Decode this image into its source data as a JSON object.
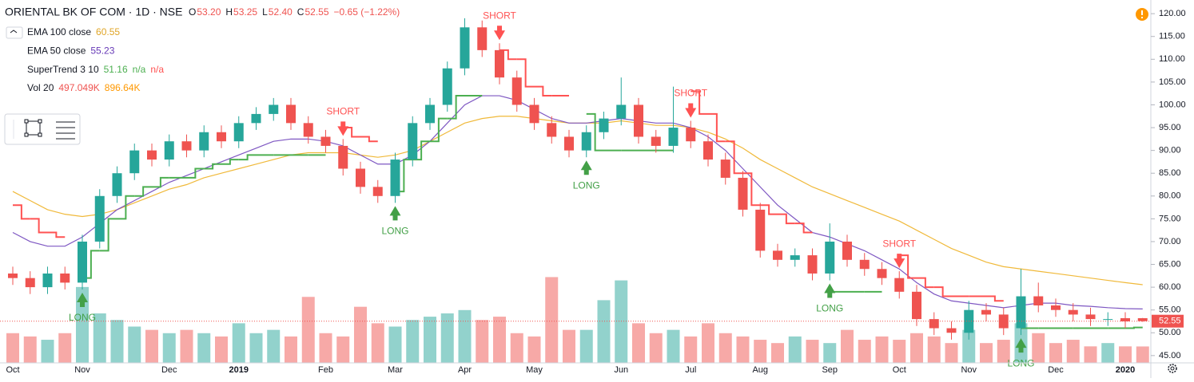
{
  "header": {
    "symbol": "ORIENTAL BK OF COM · 1D · NSE",
    "ohlc": [
      {
        "key": "O",
        "value": "53.20"
      },
      {
        "key": "H",
        "value": "53.25"
      },
      {
        "key": "L",
        "value": "52.40"
      },
      {
        "key": "C",
        "value": "52.55"
      }
    ],
    "change": "−0.65 (−1.22%)"
  },
  "legend": [
    {
      "name": "EMA 100 close",
      "values": [
        {
          "text": "60.55",
          "color": "#e0a526"
        }
      ]
    },
    {
      "name": "EMA 50 close",
      "values": [
        {
          "text": "55.23",
          "color": "#673ab7"
        }
      ]
    },
    {
      "name": "SuperTrend 3 10",
      "values": [
        {
          "text": "51.16",
          "color": "#4caf50"
        },
        {
          "text": "n/a",
          "color": "#4caf50"
        },
        {
          "text": "n/a",
          "color": "#ff5252"
        }
      ]
    },
    {
      "name": "Vol 20",
      "values": [
        {
          "text": "497.049K",
          "color": "#ef5350"
        },
        {
          "text": "896.64K",
          "color": "#ff9800"
        }
      ]
    }
  ],
  "chart_data": {
    "type": "candlestick",
    "categories": [
      "Oct",
      null,
      null,
      null,
      "Nov",
      null,
      null,
      null,
      null,
      "Dec",
      null,
      null,
      null,
      "2019",
      null,
      null,
      null,
      null,
      "Feb",
      null,
      null,
      null,
      "Mar",
      null,
      null,
      null,
      "Apr",
      null,
      null,
      null,
      "May",
      null,
      null,
      null,
      null,
      "Jun",
      null,
      null,
      null,
      "Jul",
      null,
      null,
      null,
      "Aug",
      null,
      null,
      null,
      "Sep",
      null,
      null,
      null,
      "Oct",
      null,
      null,
      null,
      "Nov",
      null,
      null,
      null,
      null,
      "Dec",
      null,
      null,
      null,
      "2020",
      null
    ],
    "open": [
      63,
      62,
      60,
      63,
      61,
      70,
      80,
      85,
      90,
      88,
      92,
      90,
      94,
      92,
      96,
      98,
      100,
      96,
      93,
      91,
      86,
      82,
      80,
      88,
      96,
      100,
      108,
      117,
      112,
      106,
      100,
      96,
      93,
      90,
      94,
      97,
      100,
      93,
      91,
      95,
      92,
      88,
      84,
      77,
      68,
      66,
      67,
      63,
      70,
      66,
      64,
      62,
      59,
      53,
      51,
      50,
      55,
      54,
      51,
      58,
      56,
      55,
      54,
      53,
      53.2,
      53.2
    ],
    "high": [
      64.5,
      63.5,
      64.5,
      64.5,
      71.5,
      81.5,
      86.5,
      91.5,
      91.5,
      93.5,
      93.5,
      95.5,
      95.5,
      97.5,
      99.5,
      101.5,
      101.5,
      97.5,
      94.5,
      92.5,
      87.5,
      83.5,
      89.5,
      97.5,
      101.5,
      109.5,
      119,
      118.5,
      113.5,
      107.5,
      101.5,
      97.5,
      94.5,
      95.5,
      98.5,
      106,
      101.5,
      94.5,
      104,
      96.5,
      93.5,
      89.5,
      85.5,
      78.5,
      69.5,
      68.5,
      68.5,
      74,
      71.5,
      67.5,
      65.5,
      63.5,
      60.5,
      54.5,
      52.5,
      57,
      56.5,
      55.5,
      64,
      61,
      57.5,
      56.5,
      55.5,
      54.5,
      54.5,
      53.25
    ],
    "low": [
      60.5,
      58.5,
      58.5,
      59.5,
      59.5,
      68.5,
      78.5,
      83.5,
      86.5,
      86.5,
      88.5,
      88.5,
      90.5,
      90.5,
      94.5,
      96.5,
      94.5,
      91.5,
      89.5,
      84.5,
      80.5,
      78.5,
      78.5,
      86.5,
      94.5,
      98.5,
      106.5,
      110.5,
      104.5,
      98.5,
      94.5,
      91.5,
      88.5,
      88.5,
      92.5,
      95.5,
      91.5,
      89.5,
      89.5,
      90.5,
      86.5,
      82.5,
      75.5,
      66.5,
      64.5,
      64.5,
      61.5,
      61.5,
      64.5,
      62.5,
      60.5,
      57.5,
      51.5,
      49.5,
      48.5,
      48.5,
      52.5,
      49.5,
      49.5,
      54.5,
      53.5,
      52.5,
      51.5,
      51.5,
      51,
      52.4
    ],
    "close": [
      62,
      60,
      63,
      61,
      70,
      80,
      85,
      90,
      88,
      92,
      90,
      94,
      92,
      96,
      98,
      100,
      96,
      93,
      91,
      86,
      82,
      80,
      88,
      96,
      100,
      108,
      117,
      112,
      106,
      100,
      96,
      93,
      90,
      94,
      97,
      100,
      93,
      91,
      95,
      92,
      88,
      84,
      77,
      68,
      66,
      67,
      63,
      70,
      66,
      64,
      62,
      59,
      53,
      51,
      50,
      55,
      54,
      51,
      58,
      56,
      55,
      54,
      53,
      53,
      52.5,
      52.55
    ],
    "up_color": "#26a69a",
    "down_color": "#ef5350",
    "volume": {
      "lim": [
        0,
        11000
      ],
      "values": [
        900,
        800,
        700,
        900,
        2300,
        1500,
        1300,
        1100,
        1000,
        900,
        1000,
        900,
        800,
        1200,
        900,
        1000,
        800,
        2000,
        900,
        800,
        1700,
        1200,
        1100,
        1300,
        1400,
        1500,
        1600,
        1300,
        1400,
        900,
        800,
        2600,
        1000,
        1000,
        1900,
        2500,
        1200,
        900,
        1000,
        800,
        1200,
        900,
        800,
        700,
        600,
        800,
        700,
        600,
        1000,
        700,
        800,
        700,
        900,
        800,
        600,
        1000,
        600,
        700,
        1200,
        900,
        600,
        700,
        500,
        600,
        500,
        497.049
      ]
    },
    "ema100": {
      "color": "#f0b93a",
      "values": [
        81,
        79,
        77,
        76,
        75.5,
        76,
        77,
        78.5,
        80,
        81.5,
        82.5,
        84,
        85,
        86,
        87,
        88,
        89,
        89.5,
        89.5,
        89.5,
        89,
        88.5,
        89,
        90,
        92,
        94,
        96,
        97,
        97.5,
        97.5,
        97,
        96.5,
        96,
        96,
        96,
        96.5,
        96,
        95.5,
        95.5,
        95,
        94,
        92.5,
        90.5,
        88,
        86,
        84,
        82,
        80.5,
        79,
        77.5,
        76,
        74.5,
        72.5,
        70.5,
        68.5,
        67,
        65.5,
        64.5,
        64,
        63.5,
        63,
        62.5,
        62,
        61.5,
        61,
        60.55
      ]
    },
    "ema50": {
      "color": "#7e57c2",
      "values": [
        72,
        70,
        69,
        69,
        71,
        74,
        77,
        79,
        81,
        83,
        84.5,
        86,
        87.5,
        89,
        90.5,
        92,
        92.5,
        92.5,
        92,
        91,
        89,
        87,
        87,
        89,
        92,
        96,
        100,
        102,
        102,
        101,
        99,
        97,
        96,
        96,
        96.5,
        97,
        96.5,
        96,
        96,
        95,
        93,
        90,
        86,
        82,
        78,
        75,
        72,
        71,
        69.5,
        68,
        66,
        64,
        61,
        58.5,
        57,
        56.5,
        56,
        55.5,
        56,
        56.5,
        56.5,
        56,
        55.8,
        55.5,
        55.3,
        55.23
      ]
    },
    "supertrend": {
      "values": [
        78,
        75,
        72,
        71,
        62,
        68,
        75,
        80,
        82,
        84,
        84,
        86,
        87,
        88,
        89,
        89,
        89,
        89,
        89,
        95,
        93,
        92,
        81,
        88,
        92,
        97,
        102,
        102,
        112,
        110,
        104,
        102,
        102,
        98,
        90,
        90,
        90,
        90,
        90,
        103,
        98,
        92,
        85,
        78,
        76,
        74,
        72,
        59,
        59,
        59,
        59,
        67,
        62,
        60,
        58,
        58,
        58,
        57,
        51,
        51,
        51,
        51,
        51,
        51,
        51,
        51.16
      ],
      "colors": [
        "#ff5252",
        "#ff5252",
        "#ff5252",
        "#ff5252",
        "#4caf50",
        "#4caf50",
        "#4caf50",
        "#4caf50",
        "#4caf50",
        "#4caf50",
        "#4caf50",
        "#4caf50",
        "#4caf50",
        "#4caf50",
        "#4caf50",
        "#4caf50",
        "#4caf50",
        "#4caf50",
        "#4caf50",
        "#ff5252",
        "#ff5252",
        "#ff5252",
        "#4caf50",
        "#4caf50",
        "#4caf50",
        "#4caf50",
        "#4caf50",
        "#4caf50",
        "#ff5252",
        "#ff5252",
        "#ff5252",
        "#ff5252",
        "#ff5252",
        "#4caf50",
        "#4caf50",
        "#4caf50",
        "#4caf50",
        "#4caf50",
        "#4caf50",
        "#ff5252",
        "#ff5252",
        "#ff5252",
        "#ff5252",
        "#ff5252",
        "#ff5252",
        "#ff5252",
        "#ff5252",
        "#4caf50",
        "#4caf50",
        "#4caf50",
        "#4caf50",
        "#ff5252",
        "#ff5252",
        "#ff5252",
        "#ff5252",
        "#ff5252",
        "#ff5252",
        "#ff5252",
        "#4caf50",
        "#4caf50",
        "#4caf50",
        "#4caf50",
        "#4caf50",
        "#4caf50",
        "#4caf50",
        "#4caf50"
      ]
    },
    "signals": [
      null,
      null,
      null,
      null,
      "LONG",
      null,
      null,
      null,
      null,
      null,
      null,
      null,
      null,
      null,
      null,
      null,
      null,
      null,
      null,
      "SHORT",
      null,
      null,
      "LONG",
      null,
      null,
      null,
      null,
      null,
      "SHORT",
      null,
      null,
      null,
      null,
      "LONG",
      null,
      null,
      null,
      null,
      null,
      "SHORT",
      null,
      null,
      null,
      null,
      null,
      null,
      null,
      "LONG",
      null,
      null,
      null,
      "SHORT",
      null,
      null,
      null,
      null,
      null,
      null,
      "LONG",
      null,
      null,
      null,
      null,
      null,
      null,
      null
    ],
    "ylim": [
      43.4,
      123
    ],
    "yticks": [
      {
        "value": 45,
        "label": "45.00"
      },
      {
        "value": 50,
        "label": "50.00"
      },
      {
        "value": 55,
        "label": "55.00"
      },
      {
        "value": 60,
        "label": "60.00"
      },
      {
        "value": 65,
        "label": "65.00"
      },
      {
        "value": 70,
        "label": "70.00"
      },
      {
        "value": 75,
        "label": "75.00"
      },
      {
        "value": 80,
        "label": "80.00"
      },
      {
        "value": 85,
        "label": "85.00"
      },
      {
        "value": 90,
        "label": "90.00"
      },
      {
        "value": 95,
        "label": "95.00"
      },
      {
        "value": 100,
        "label": "100.00"
      },
      {
        "value": 105,
        "label": "105.00"
      },
      {
        "value": 110,
        "label": "110.00"
      },
      {
        "value": 115,
        "label": "115.00"
      },
      {
        "value": 120,
        "label": "120.00"
      }
    ],
    "last_price": 52.55
  }
}
